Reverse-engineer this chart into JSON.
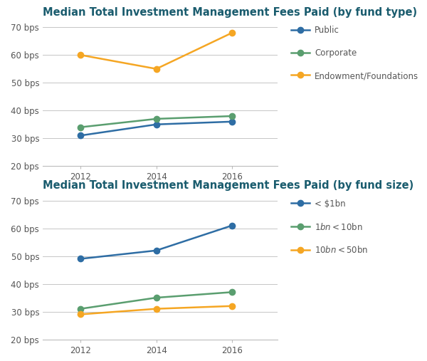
{
  "chart1": {
    "title": "Median Total Investment Management Fees Paid (by fund type)",
    "years": [
      2012,
      2014,
      2016
    ],
    "series": [
      {
        "label": "Public",
        "values": [
          31,
          35,
          36
        ],
        "color": "#2e6da4",
        "marker": "o"
      },
      {
        "label": "Corporate",
        "values": [
          34,
          37,
          38
        ],
        "color": "#5a9e6f",
        "marker": "o"
      },
      {
        "label": "Endowment/Foundations",
        "values": [
          60,
          55,
          68
        ],
        "color": "#f5a623",
        "marker": "o"
      }
    ],
    "ylim": [
      20,
      72
    ],
    "yticks": [
      20,
      30,
      40,
      50,
      60,
      70
    ],
    "ytick_labels": [
      "20 bps",
      "30 bps",
      "40 bps",
      "50 bps",
      "60 bps",
      "70 bps"
    ]
  },
  "chart2": {
    "title": "Median Total Investment Management Fees Paid (by fund size)",
    "years": [
      2012,
      2014,
      2016
    ],
    "series": [
      {
        "label": "< $1bn",
        "values": [
          49,
          52,
          61
        ],
        "color": "#2e6da4",
        "marker": "o"
      },
      {
        "label": "$1bn < $10bn",
        "values": [
          31,
          35,
          37
        ],
        "color": "#5a9e6f",
        "marker": "o"
      },
      {
        "label": "$10bn < $50bn",
        "values": [
          29,
          31,
          32
        ],
        "color": "#f5a623",
        "marker": "o"
      }
    ],
    "ylim": [
      20,
      72
    ],
    "yticks": [
      20,
      30,
      40,
      50,
      60,
      70
    ],
    "ytick_labels": [
      "20 bps",
      "30 bps",
      "40 bps",
      "50 bps",
      "60 bps",
      "70 bps"
    ]
  },
  "title_color": "#1a5c6e",
  "title_fontsize": 10.5,
  "axis_color": "#bbbbbb",
  "tick_color": "#555555",
  "tick_fontsize": 8.5,
  "linewidth": 1.8,
  "markersize": 6,
  "background_color": "#ffffff",
  "legend_fontsize": 8.5,
  "legend_text_color": "#555555"
}
